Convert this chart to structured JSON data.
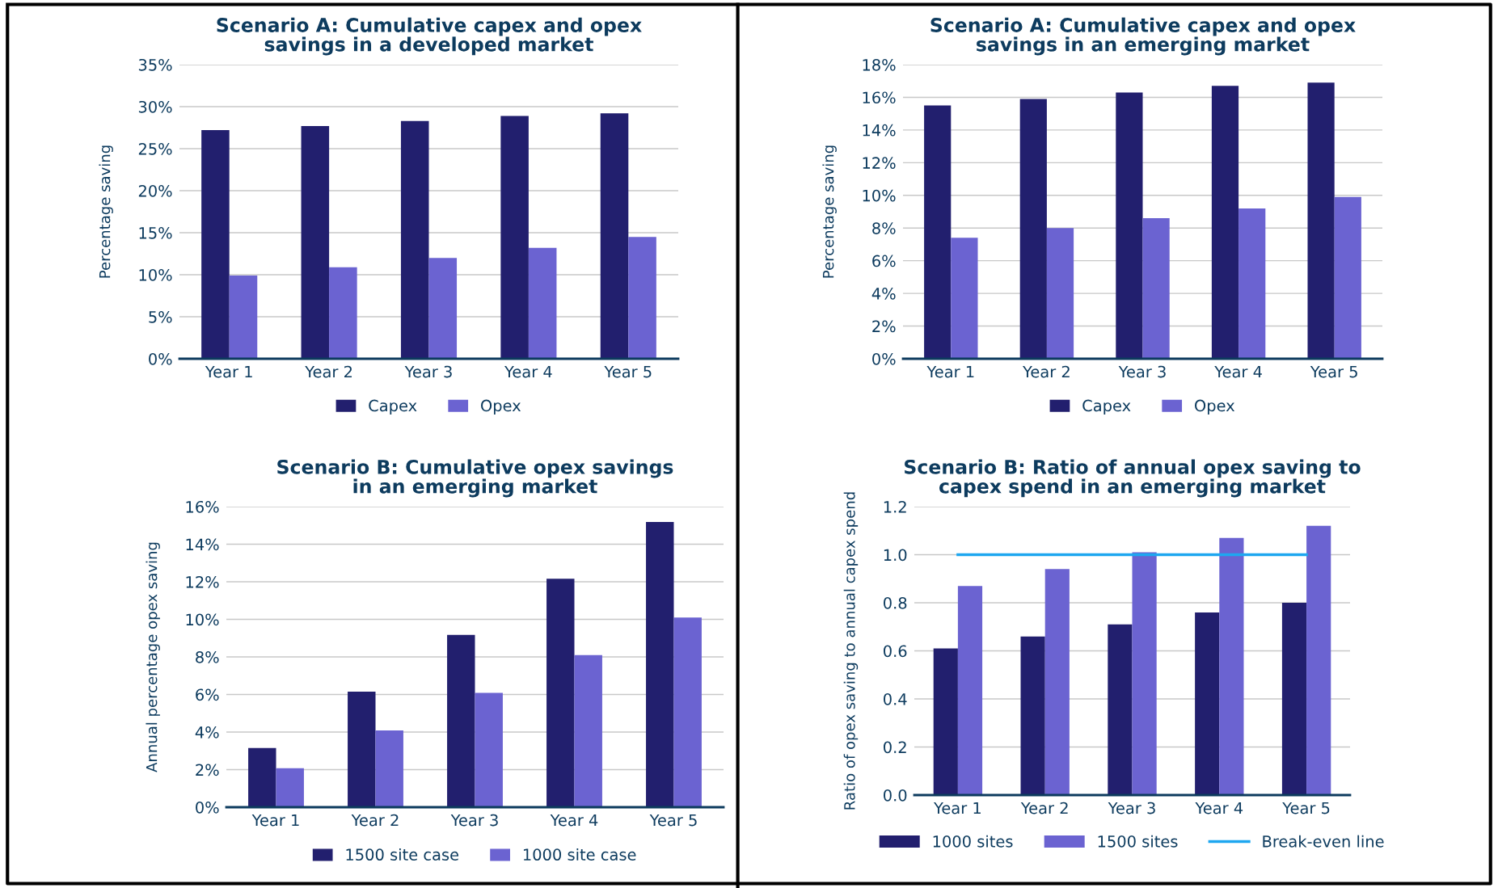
{
  "chart_data": [
    {
      "type": "bar",
      "title": "Scenario A: Cumulative capex and opex\nsavings in a developed market",
      "ylabel": "Percentage saving",
      "categories": [
        "Year 1",
        "Year 2",
        "Year 3",
        "Year 4",
        "Year 5"
      ],
      "series": [
        {
          "name": "Capex",
          "color": "#221f6e",
          "values": [
            27.2,
            27.7,
            28.3,
            28.9,
            29.2
          ]
        },
        {
          "name": "Opex",
          "color": "#6b63d1",
          "values": [
            9.9,
            10.9,
            12.0,
            13.2,
            14.5
          ]
        }
      ],
      "ylim": [
        0,
        35
      ],
      "yticks": [
        {
          "value": 0,
          "label": "0%"
        },
        {
          "value": 5,
          "label": "5%"
        },
        {
          "value": 10,
          "label": "10%"
        },
        {
          "value": 15,
          "label": "15%"
        },
        {
          "value": 20,
          "label": "20%"
        },
        {
          "value": 25,
          "label": "25%"
        },
        {
          "value": 30,
          "label": "30%"
        },
        {
          "value": 35,
          "label": "35%"
        }
      ],
      "grid": "y",
      "legend": "bottom"
    },
    {
      "type": "bar",
      "title": "Scenario A: Cumulative capex and opex\nsavings in an emerging market",
      "ylabel": "Percentage saving",
      "categories": [
        "Year 1",
        "Year 2",
        "Year 3",
        "Year 4",
        "Year 5"
      ],
      "series": [
        {
          "name": "Capex",
          "color": "#221f6e",
          "values": [
            15.5,
            15.9,
            16.3,
            16.7,
            16.9
          ]
        },
        {
          "name": "Opex",
          "color": "#6b63d1",
          "values": [
            7.4,
            8.0,
            8.6,
            9.2,
            9.9
          ]
        }
      ],
      "ylim": [
        0,
        18
      ],
      "yticks": [
        {
          "value": 0,
          "label": "0%"
        },
        {
          "value": 2,
          "label": "2%"
        },
        {
          "value": 4,
          "label": "4%"
        },
        {
          "value": 6,
          "label": "6%"
        },
        {
          "value": 8,
          "label": "8%"
        },
        {
          "value": 10,
          "label": "10%"
        },
        {
          "value": 12,
          "label": "12%"
        },
        {
          "value": 14,
          "label": "14%"
        },
        {
          "value": 16,
          "label": "16%"
        },
        {
          "value": 18,
          "label": "18%"
        }
      ],
      "grid": "y",
      "legend": "bottom"
    },
    {
      "type": "bar",
      "title": "Scenario B: Cumulative opex savings\nin an emerging market",
      "ylabel": "Annual percentage opex saving",
      "categories": [
        "Year 1",
        "Year 2",
        "Year 3",
        "Year 4",
        "Year 5"
      ],
      "series": [
        {
          "name": "1500 site case",
          "color": "#221f6e",
          "values": [
            3.15,
            6.15,
            9.17,
            12.16,
            15.18
          ]
        },
        {
          "name": "1000 site case",
          "color": "#6b63d1",
          "values": [
            2.08,
            4.09,
            6.09,
            8.1,
            10.1
          ]
        }
      ],
      "ylim": [
        0,
        16
      ],
      "yticks": [
        {
          "value": 0,
          "label": "0%"
        },
        {
          "value": 2,
          "label": "2%"
        },
        {
          "value": 4,
          "label": "4%"
        },
        {
          "value": 6,
          "label": "6%"
        },
        {
          "value": 8,
          "label": "8%"
        },
        {
          "value": 10,
          "label": "10%"
        },
        {
          "value": 12,
          "label": "12%"
        },
        {
          "value": 14,
          "label": "14%"
        },
        {
          "value": 16,
          "label": "16%"
        }
      ],
      "grid": "y",
      "legend": "bottom"
    },
    {
      "type": "bar",
      "title": "Scenario B: Ratio of annual opex saving to\ncapex spend in an emerging market",
      "ylabel": "Ratio of opex saving to annual capex spend",
      "categories": [
        "Year 1",
        "Year 2",
        "Year 3",
        "Year 4",
        "Year 5"
      ],
      "series": [
        {
          "name": "1000 sites",
          "color": "#221f6e",
          "values": [
            0.61,
            0.66,
            0.71,
            0.76,
            0.8
          ]
        },
        {
          "name": "1500 sites",
          "color": "#6b63d1",
          "values": [
            0.87,
            0.94,
            1.01,
            1.07,
            1.12
          ]
        },
        {
          "name": "Break-even line",
          "type": "line",
          "color": "#1ea7f0",
          "values": [
            1.0,
            1.0,
            1.0,
            1.0,
            1.0
          ]
        }
      ],
      "ylim": [
        0,
        1.2
      ],
      "yticks": [
        {
          "value": 0,
          "label": "0.0"
        },
        {
          "value": 0.2,
          "label": "0.2"
        },
        {
          "value": 0.4,
          "label": "0.4"
        },
        {
          "value": 0.6,
          "label": "0.6"
        },
        {
          "value": 0.8,
          "label": "0.8"
        },
        {
          "value": 1.0,
          "label": "1.0"
        },
        {
          "value": 1.2,
          "label": "1.2"
        }
      ],
      "grid": "y",
      "legend": "bottom"
    }
  ]
}
